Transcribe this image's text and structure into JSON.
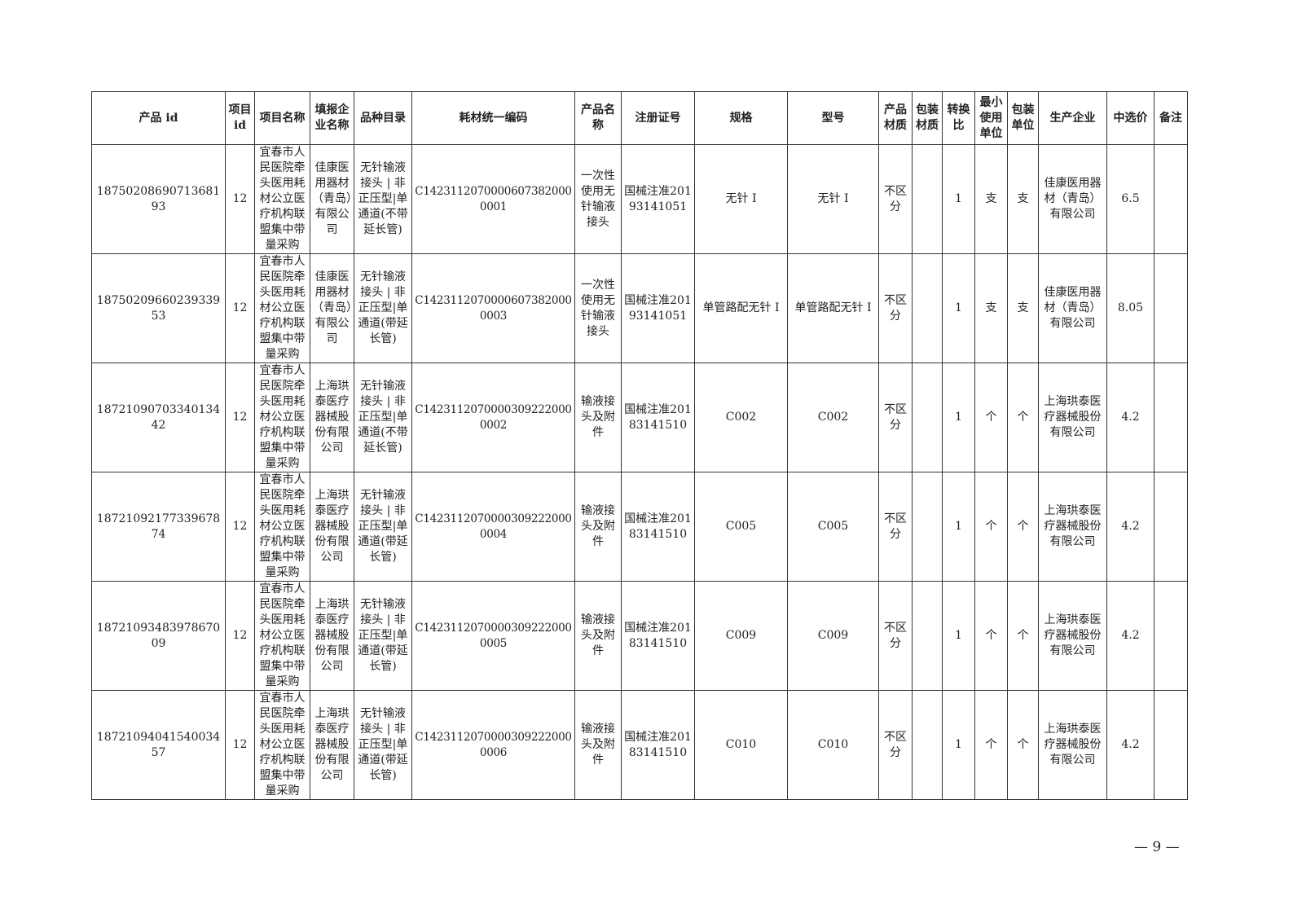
{
  "table": {
    "headers": [
      "产品 id",
      "项目 id",
      "项目名称",
      "填报企业名称",
      "品种目录",
      "耗材统一编码",
      "产品名称",
      "注册证号",
      "规格",
      "型号",
      "产品材质",
      "包装材质",
      "转换比",
      "最小使用单位",
      "包装单位",
      "生产企业",
      "中选价",
      "备注"
    ],
    "rows": [
      [
        "1875020869071368193",
        "12",
        "宜春市人民医院牵头医用耗材公立医疗机构联盟集中带量采购",
        "佳康医用器材（青岛）有限公司",
        "无针输液接头 | 非正压型|单通道(不带延长管)",
        "C14231120700006073820000001",
        "一次性使用无针输液接头",
        "国械注准20193141051",
        "无针 I",
        "无针 I",
        "不区分",
        "",
        "1",
        "支",
        "支",
        "佳康医用器材（青岛）有限公司",
        "6.5",
        ""
      ],
      [
        "1875020966023933953",
        "12",
        "宜春市人民医院牵头医用耗材公立医疗机构联盟集中带量采购",
        "佳康医用器材（青岛）有限公司",
        "无针输液接头 | 非正压型|单通道(带延长管)",
        "C14231120700006073820000003",
        "一次性使用无针输液接头",
        "国械注准20193141051",
        "单管路配无针 I",
        "单管路配无针 I",
        "不区分",
        "",
        "1",
        "支",
        "支",
        "佳康医用器材（青岛）有限公司",
        "8.05",
        ""
      ],
      [
        "1872109070334013442",
        "12",
        "宜春市人民医院牵头医用耗材公立医疗机构联盟集中带量采购",
        "上海珙泰医疗器械股份有限公司",
        "无针输液接头 | 非正压型|单通道(不带延长管)",
        "C14231120700003092220000002",
        "输液接头及附件",
        "国械注准20183141510",
        "C002",
        "C002",
        "不区分",
        "",
        "1",
        "个",
        "个",
        "上海珙泰医疗器械股份有限公司",
        "4.2",
        ""
      ],
      [
        "1872109217733967874",
        "12",
        "宜春市人民医院牵头医用耗材公立医疗机构联盟集中带量采购",
        "上海珙泰医疗器械股份有限公司",
        "无针输液接头 | 非正压型|单通道(带延长管)",
        "C14231120700003092220000004",
        "输液接头及附件",
        "国械注准20183141510",
        "C005",
        "C005",
        "不区分",
        "",
        "1",
        "个",
        "个",
        "上海珙泰医疗器械股份有限公司",
        "4.2",
        ""
      ],
      [
        "1872109348397867009",
        "12",
        "宜春市人民医院牵头医用耗材公立医疗机构联盟集中带量采购",
        "上海珙泰医疗器械股份有限公司",
        "无针输液接头 | 非正压型|单通道(带延长管)",
        "C14231120700003092220000005",
        "输液接头及附件",
        "国械注准20183141510",
        "C009",
        "C009",
        "不区分",
        "",
        "1",
        "个",
        "个",
        "上海珙泰医疗器械股份有限公司",
        "4.2",
        ""
      ],
      [
        "1872109404154003457",
        "12",
        "宜春市人民医院牵头医用耗材公立医疗机构联盟集中带量采购",
        "上海珙泰医疗器械股份有限公司",
        "无针输液接头 | 非正压型|单通道(带延长管)",
        "C14231120700003092220000006",
        "输液接头及附件",
        "国械注准20183141510",
        "C010",
        "C010",
        "不区分",
        "",
        "1",
        "个",
        "个",
        "上海珙泰医疗器械股份有限公司",
        "4.2",
        ""
      ]
    ]
  },
  "footer": {
    "page_number": "— 9 —"
  }
}
